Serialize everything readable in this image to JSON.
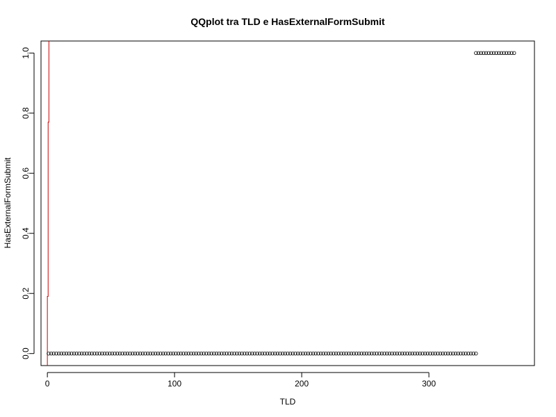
{
  "chart_data": {
    "type": "scatter",
    "title": "QQplot tra TLD e HasExternalFormSubmit",
    "xlabel": "TLD",
    "ylabel": "HasExternalFormSubmit",
    "xlim": [
      -5,
      383
    ],
    "ylim": [
      -0.04,
      1.04
    ],
    "x_ticks": [
      0,
      100,
      200,
      300
    ],
    "x_tick_labels": [
      "0",
      "100",
      "200",
      "300"
    ],
    "y_ticks": [
      0.0,
      0.2,
      0.4,
      0.6,
      0.8,
      1.0
    ],
    "y_tick_labels": [
      "0.0",
      "0.2",
      "0.4",
      "0.6",
      "0.8",
      "1.0"
    ],
    "grid": false,
    "legend": "none",
    "series": [
      {
        "x_start": 1,
        "x_end": 337,
        "x_step": 2,
        "y": 0,
        "marker": "open-circle",
        "color": "#000000"
      },
      {
        "x_start": 337,
        "x_end": 367,
        "x_step": 2,
        "y": 1,
        "marker": "open-circle",
        "color": "#000000"
      }
    ],
    "reference_line": {
      "color": "#cc0000",
      "points": [
        [
          0,
          -0.04
        ],
        [
          0,
          0.19
        ],
        [
          0.6,
          0.19
        ],
        [
          0.6,
          0.77
        ],
        [
          1.2,
          0.77
        ],
        [
          1.2,
          1.04
        ]
      ]
    }
  }
}
